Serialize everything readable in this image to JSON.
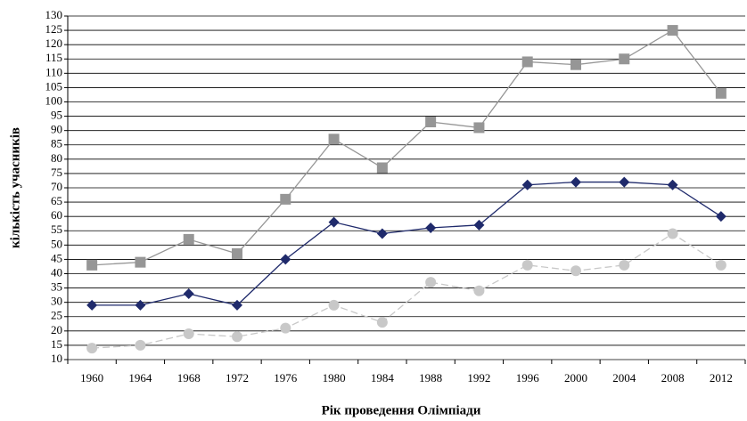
{
  "chart_data": {
    "type": "line",
    "xlabel": "Рік проведення Олімпіади",
    "ylabel": "кількість учасників",
    "categories": [
      "1960",
      "1964",
      "1968",
      "1972",
      "1976",
      "1980",
      "1984",
      "1988",
      "1992",
      "1996",
      "2000",
      "2004",
      "2008",
      "2012"
    ],
    "series": [
      {
        "color": "#969696",
        "marker": "square",
        "dash": false,
        "values": [
          43,
          44,
          52,
          47,
          66,
          87,
          77,
          93,
          91,
          114,
          113,
          115,
          125,
          103
        ]
      },
      {
        "color": "#1f2a6b",
        "marker": "diamond",
        "dash": false,
        "values": [
          29,
          29,
          33,
          29,
          45,
          58,
          54,
          56,
          57,
          71,
          72,
          72,
          71,
          60
        ]
      },
      {
        "color": "#c8c8c8",
        "marker": "circle",
        "dash": true,
        "values": [
          14,
          15,
          19,
          18,
          21,
          29,
          23,
          37,
          34,
          43,
          41,
          43,
          54,
          43
        ]
      }
    ],
    "ylim": [
      10,
      130
    ],
    "yticks": [
      10,
      15,
      20,
      25,
      30,
      35,
      40,
      45,
      50,
      55,
      60,
      65,
      70,
      75,
      80,
      85,
      90,
      95,
      100,
      105,
      110,
      115,
      120,
      125,
      130
    ],
    "grid": true
  }
}
